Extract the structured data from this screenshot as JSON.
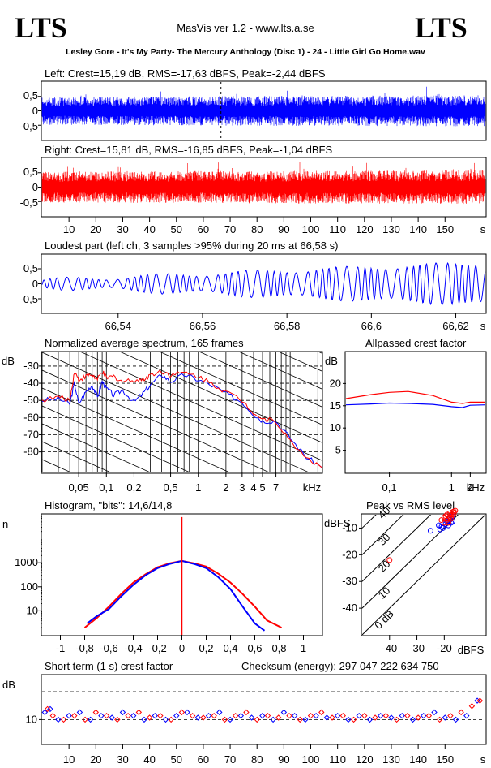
{
  "header": {
    "logo_left": "LTS",
    "logo_right": "LTS",
    "app_title": "MasVis ver 1.2 - www.lts.a.se",
    "file_title": "Lesley Gore - It's My Party- The Mercury Anthology (Disc 1) - 24 - Little Girl Go Home.wav"
  },
  "colors": {
    "left": "#0000ff",
    "right": "#ff0000"
  },
  "chart_data": [
    {
      "id": "left",
      "type": "line",
      "title": "Left: Crest=15,19 dB, RMS=-17,63 dBFS, Peak=-2,44 dBFS",
      "yticks": [
        "0,5",
        "0",
        "-0,5"
      ],
      "ylim": [
        -1,
        1
      ],
      "xlim": [
        0,
        165
      ],
      "marker_x": 66.58,
      "envelope": {
        "x": [
          0,
          165
        ],
        "amplitude": [
          0.5,
          0.55
        ]
      }
    },
    {
      "id": "right",
      "type": "line",
      "title": "Right: Crest=15,81 dB, RMS=-16,85 dBFS, Peak=-1,04 dBFS",
      "yticks": [
        "0,5",
        "0",
        "-0,5"
      ],
      "ylim": [
        -1,
        1
      ],
      "xlim": [
        0,
        165
      ],
      "xticks": [
        10,
        20,
        30,
        40,
        50,
        60,
        70,
        80,
        90,
        100,
        110,
        120,
        130,
        140,
        150
      ],
      "xtick_labels": [
        "10",
        "20",
        "30",
        "40",
        "50",
        "60",
        "70",
        "80",
        "90",
        "100",
        "110",
        "120",
        "130",
        "140",
        "150"
      ],
      "xunit": "s"
    },
    {
      "id": "loudest",
      "type": "line",
      "title": "Loudest part (left  ch, 3 samples >95% during 20 ms at 66,58 s)",
      "yticks": [
        "0,5",
        "0",
        "-0,5"
      ],
      "ylim": [
        -1,
        1
      ],
      "xlim": [
        66.522,
        66.627
      ],
      "xticks": [
        66.54,
        66.56,
        66.58,
        66.6,
        66.62
      ],
      "xtick_labels": [
        "66,54",
        "66,56",
        "66,58",
        "66,6",
        "66,62"
      ],
      "xunit": "s"
    },
    {
      "id": "spectrum",
      "type": "line",
      "title": "Normalized average spectrum, 165 frames",
      "ylabel": "dB",
      "ylim": [
        -92,
        -22
      ],
      "yticks": [
        -30,
        -40,
        -50,
        -60,
        -70,
        -80
      ],
      "ytick_labels": [
        "-30",
        "-40",
        "-50",
        "-60",
        "-70",
        "-80"
      ],
      "xscale": "log",
      "xlim": [
        0.02,
        22
      ],
      "xticks": [
        0.05,
        0.1,
        0.2,
        0.5,
        1,
        2,
        3,
        4,
        5,
        7
      ],
      "xtick_labels": [
        "0,05",
        "0,1",
        "0,2",
        "0,5",
        "1",
        "2",
        "3",
        "4",
        "5",
        "7"
      ],
      "xunit": "kHz",
      "series": [
        {
          "channel": "left",
          "x": [
            0.02,
            0.03,
            0.04,
            0.045,
            0.05,
            0.06,
            0.07,
            0.08,
            0.09,
            0.1,
            0.12,
            0.15,
            0.2,
            0.25,
            0.3,
            0.4,
            0.5,
            0.7,
            1,
            1.5,
            2,
            3,
            4,
            5,
            7,
            10,
            15,
            22
          ],
          "y": [
            -50,
            -49,
            -52,
            -40,
            -52,
            -45,
            -41,
            -48,
            -39,
            -43,
            -47,
            -44,
            -51,
            -46,
            -41,
            -35,
            -39,
            -35,
            -38,
            -42,
            -46,
            -51,
            -58,
            -62,
            -62,
            -72,
            -83,
            -89
          ]
        },
        {
          "channel": "right",
          "x": [
            0.02,
            0.03,
            0.04,
            0.045,
            0.05,
            0.06,
            0.07,
            0.08,
            0.09,
            0.1,
            0.12,
            0.15,
            0.2,
            0.25,
            0.3,
            0.4,
            0.5,
            0.7,
            1,
            1.5,
            2,
            3,
            4,
            5,
            7,
            10,
            15,
            22
          ],
          "y": [
            -50,
            -48,
            -50,
            -33,
            -38,
            -36,
            -35,
            -38,
            -33,
            -37,
            -36,
            -39,
            -38,
            -38,
            -35,
            -33,
            -35,
            -34,
            -36,
            -41,
            -45,
            -50,
            -57,
            -61,
            -62,
            -74,
            -83,
            -89
          ]
        }
      ]
    },
    {
      "id": "allpass",
      "type": "line",
      "title": "Allpassed crest factor",
      "ylabel": "dB",
      "ylim": [
        0,
        27
      ],
      "yticks": [
        5,
        10,
        15,
        20
      ],
      "ytick_labels": [
        "5",
        "10",
        "15",
        "20"
      ],
      "xscale": "log",
      "xlim": [
        0.02,
        3.5
      ],
      "xticks": [
        0.1,
        1,
        2
      ],
      "xtick_labels": [
        "0,1",
        "1",
        "2"
      ],
      "xunit": "kHz",
      "series": [
        {
          "channel": "left",
          "x": [
            0.02,
            0.05,
            0.1,
            0.2,
            0.5,
            1,
            1.5,
            2,
            3.5
          ],
          "y": [
            15.2,
            15.4,
            15.6,
            15.5,
            15.3,
            14.8,
            14.6,
            15.1,
            15.2
          ]
        },
        {
          "channel": "right",
          "x": [
            0.02,
            0.05,
            0.1,
            0.2,
            0.5,
            1,
            1.5,
            2,
            3.5
          ],
          "y": [
            16.6,
            17.5,
            18,
            18.2,
            17.3,
            15.8,
            15.5,
            15.8,
            15.8
          ]
        }
      ]
    },
    {
      "id": "histogram",
      "type": "line",
      "title": "Histogram, \"bits\": 14,6/14,8",
      "ylabel": "n",
      "yscale": "log",
      "ylim": [
        1,
        100000
      ],
      "yticks": [
        10,
        100,
        1000
      ],
      "ytick_labels": [
        "10",
        "100",
        "1000"
      ],
      "xlim": [
        -1.15,
        1.15
      ],
      "xticks": [
        -1,
        -0.8,
        -0.6,
        -0.4,
        -0.2,
        0,
        0.2,
        0.4,
        0.6,
        0.8,
        1
      ],
      "xtick_labels": [
        "-1",
        "-0,8",
        "-0,6",
        "-0,4",
        "-0,2",
        "0",
        "0,2",
        "0,4",
        "0,6",
        "0,8",
        "1"
      ],
      "series": [
        {
          "channel": "left",
          "x": [
            -0.78,
            -0.7,
            -0.6,
            -0.5,
            -0.4,
            -0.3,
            -0.2,
            -0.1,
            0,
            0.1,
            0.2,
            0.3,
            0.4,
            0.5,
            0.6,
            0.68
          ],
          "y": [
            3,
            6,
            12,
            40,
            120,
            300,
            600,
            900,
            1200,
            900,
            600,
            250,
            80,
            15,
            3,
            1.5
          ]
        },
        {
          "channel": "right",
          "x": [
            -0.8,
            -0.7,
            -0.6,
            -0.5,
            -0.4,
            -0.3,
            -0.2,
            -0.1,
            0,
            0.1,
            0.2,
            0.3,
            0.4,
            0.5,
            0.6,
            0.7,
            0.82
          ],
          "y": [
            2,
            5,
            15,
            50,
            150,
            330,
            650,
            950,
            1200,
            950,
            700,
            350,
            150,
            50,
            15,
            4,
            2
          ]
        }
      ],
      "spike": {
        "x": 0,
        "y": 80000
      }
    },
    {
      "id": "peakrms",
      "type": "scatter",
      "title": "Peak vs RMS level",
      "ylabel": "dBFS",
      "xunit": "dBFS",
      "xlim": [
        -50,
        -5
      ],
      "ylim": [
        -50,
        -5
      ],
      "xticks": [
        -40,
        -30,
        -20
      ],
      "xtick_labels": [
        "-40",
        "-30",
        "-20"
      ],
      "yticks": [
        -10,
        -20,
        -30,
        -40
      ],
      "ytick_labels": [
        "-10",
        "-20",
        "-30",
        "-40"
      ],
      "diagonals": [
        {
          "offset": 0,
          "label": "0 dB"
        },
        {
          "offset": 10,
          "label": "10"
        },
        {
          "offset": 20,
          "label": "20"
        },
        {
          "offset": 30,
          "label": "30"
        },
        {
          "offset": 40,
          "label": "40"
        }
      ],
      "series": [
        {
          "channel": "left",
          "x": [
            -25,
            -22,
            -21,
            -20,
            -19.5,
            -19,
            -18.5,
            -18,
            -17.5,
            -17,
            -20.5,
            -21.5,
            -18,
            -17
          ],
          "y": [
            -11,
            -9,
            -9.5,
            -8,
            -8.5,
            -7.5,
            -9,
            -7,
            -8,
            -7.5,
            -10,
            -10.5,
            -6.5,
            -5.5
          ]
        },
        {
          "channel": "right",
          "x": [
            -40,
            -21,
            -20,
            -19.5,
            -19,
            -18.5,
            -18,
            -17.5,
            -17,
            -16.5,
            -16,
            -20,
            -19,
            -18,
            -17,
            -16.5,
            -18.5,
            -17.5
          ],
          "y": [
            -22,
            -7,
            -6,
            -5.5,
            -5,
            -6.5,
            -4.5,
            -5,
            -4,
            -3.8,
            -3.5,
            -8,
            -7,
            -6,
            -5,
            -4.5,
            -8,
            -6.5
          ]
        }
      ]
    },
    {
      "id": "shortcrest",
      "type": "scatter",
      "title": "Short term (1 s) crest factor",
      "checksum": "Checksum (energy):  297 047 222 634 750",
      "ylabel": "dB",
      "yscale": "log",
      "ylim": [
        5.5,
        30
      ],
      "yticks": [
        10
      ],
      "ytick_labels": [
        "10"
      ],
      "dashed_y": [
        10,
        20
      ],
      "xlim": [
        0,
        165
      ],
      "xticks": [
        10,
        20,
        30,
        40,
        50,
        60,
        70,
        80,
        90,
        100,
        110,
        120,
        130,
        140,
        150
      ],
      "xtick_labels": [
        "10",
        "20",
        "30",
        "40",
        "50",
        "60",
        "70",
        "80",
        "90",
        "100",
        "110",
        "120",
        "130",
        "140",
        "150"
      ],
      "xunit": "s",
      "series": [
        {
          "channel": "left",
          "x": [
            1,
            3,
            6,
            10,
            14,
            18,
            22,
            26,
            30,
            34,
            38,
            42,
            46,
            50,
            54,
            58,
            62,
            66,
            70,
            74,
            78,
            82,
            86,
            90,
            94,
            98,
            102,
            106,
            110,
            114,
            118,
            122,
            126,
            130,
            134,
            138,
            142,
            146,
            150,
            154,
            158,
            162
          ],
          "y": [
            12,
            13,
            10,
            11,
            12,
            10,
            11,
            10.5,
            12,
            11,
            10,
            11,
            10,
            11,
            12,
            10.5,
            11,
            12,
            10,
            11,
            10.5,
            11,
            10,
            12,
            11,
            10,
            11,
            10.5,
            11,
            10,
            11,
            10,
            11,
            10.5,
            11,
            10,
            11,
            12,
            10.5,
            10,
            11,
            16
          ]
        },
        {
          "channel": "right",
          "x": [
            2,
            4,
            8,
            12,
            16,
            20,
            24,
            28,
            32,
            36,
            40,
            44,
            48,
            52,
            56,
            60,
            64,
            68,
            72,
            76,
            80,
            84,
            88,
            92,
            96,
            100,
            104,
            108,
            112,
            116,
            120,
            124,
            128,
            132,
            136,
            140,
            144,
            148,
            152,
            156,
            160,
            163
          ],
          "y": [
            13,
            11,
            10,
            11,
            10,
            12,
            11,
            10,
            11,
            12,
            10.5,
            11,
            10,
            12,
            11,
            10.5,
            11,
            10,
            11,
            12,
            10,
            11,
            10.5,
            11,
            10,
            11,
            12,
            10.5,
            11,
            10,
            11,
            10.5,
            11,
            10,
            11,
            10.5,
            11,
            10,
            11,
            12,
            14,
            16
          ]
        }
      ]
    }
  ]
}
